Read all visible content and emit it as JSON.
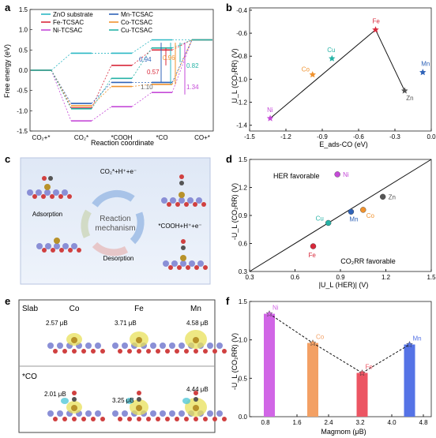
{
  "panels": {
    "a": {
      "label": "a",
      "ylabel": "Free energy (eV)",
      "xlabel": "Reaction coordinate",
      "xticks": [
        "CO₂+*",
        "CO₂*",
        "*COOH",
        "*CO",
        "CO+*"
      ],
      "yticks": [
        "1.5",
        "1.0",
        "0.5",
        "0.0",
        "-0.5",
        "-1.0",
        "-1.5"
      ],
      "legend": [
        "ZnO substrate",
        "Fe-TCSAC",
        "Ni-TCSAC",
        "Mn-TCSAC",
        "Co-TCSAC",
        "Cu-TCSAC"
      ],
      "annotations": [
        {
          "text": "0.94",
          "color": "#2f63b8"
        },
        {
          "text": "0.57",
          "color": "#d8283a"
        },
        {
          "text": "1.10",
          "color": "#666666"
        },
        {
          "text": "0.96",
          "color": "#f0922e"
        },
        {
          "text": "0.82",
          "color": "#27b3a6"
        },
        {
          "text": "1.34",
          "color": "#c54ad8"
        }
      ]
    },
    "b": {
      "label": "b",
      "ylabel": "U_L (CO₂RR) (V)",
      "xlabel": "E_ads-CO (eV)",
      "xticks": [
        "-1.5",
        "-1.2",
        "-0.9",
        "-0.6",
        "-0.3",
        "0.0"
      ],
      "yticks": [
        "-0.4",
        "-0.6",
        "-0.8",
        "-1.0",
        "-1.2",
        "-1.4"
      ]
    },
    "c": {
      "label": "c",
      "center_text_1": "Reaction",
      "center_text_2": "mechanism",
      "top_text": "CO₂*+H⁺+e⁻",
      "right_text": "*COOH+H⁺+e⁻",
      "left_text": "Adsorption",
      "bottom_text": "Desorption"
    },
    "d": {
      "label": "d",
      "ylabel": "-U_L (CO₂RR) (V)",
      "xlabel": "|U_L (HER)| (V)",
      "xticks": [
        "0.3",
        "0.6",
        "0.9",
        "1.2",
        "1.5"
      ],
      "yticks": [
        "1.5",
        "1.2",
        "0.9",
        "0.6",
        "0.3"
      ],
      "region_top": "HER favorable",
      "region_bottom": "CO₂RR favorable"
    },
    "e": {
      "label": "e",
      "row1": "Slab",
      "row2": "*CO",
      "cols": [
        "Co",
        "Fe",
        "Mn"
      ],
      "moments_slab": [
        "2.57 μB",
        "3.71 μB",
        "4.58 μB"
      ],
      "moments_co": [
        "2.01 μB",
        "3.25 μB",
        "4.44 μB"
      ]
    },
    "f": {
      "label": "f",
      "ylabel": "-U_L (CO₂RR) (V)",
      "xlabel": "Magmom (μB)",
      "xticks": [
        "0.8",
        "1.6",
        "2.4",
        "3.2",
        "4.0",
        "4.8"
      ],
      "yticks": [
        "1.5",
        "1.0",
        "0.5",
        "0.0"
      ]
    }
  },
  "chart_data": [
    {
      "panel": "a",
      "type": "line",
      "x": [
        "CO₂+*",
        "CO₂*",
        "*COOH",
        "*CO",
        "CO+*"
      ],
      "ylim": [
        -1.5,
        1.5
      ],
      "series": [
        {
          "name": "ZnO substrate",
          "color": "#2bb8c4",
          "values": [
            0.0,
            0.42,
            0.42,
            0.75,
            0.75
          ]
        },
        {
          "name": "Fe-TCSAC",
          "color": "#d8283a",
          "values": [
            0.0,
            -0.93,
            0.12,
            0.5,
            0.75
          ]
        },
        {
          "name": "Ni-TCSAC",
          "color": "#c54ad8",
          "values": [
            0.0,
            -1.25,
            -0.9,
            -0.55,
            0.75
          ]
        },
        {
          "name": "Mn-TCSAC",
          "color": "#2f63b8",
          "values": [
            0.0,
            -0.82,
            -0.3,
            -0.3,
            0.75
          ]
        },
        {
          "name": "Co-TCSAC",
          "color": "#f0922e",
          "values": [
            0.0,
            -0.88,
            -0.4,
            -0.35,
            0.75
          ]
        },
        {
          "name": "Cu-TCSAC",
          "color": "#27b3a6",
          "values": [
            0.0,
            -0.95,
            -0.2,
            0.55,
            0.75
          ]
        }
      ]
    },
    {
      "panel": "b",
      "type": "scatter",
      "xlim": [
        -1.5,
        0.0
      ],
      "ylim": [
        -1.45,
        -0.38
      ],
      "points": [
        {
          "label": "Ni",
          "x": -1.33,
          "y": -1.34,
          "color": "#c54ad8"
        },
        {
          "label": "Co",
          "x": -0.98,
          "y": -0.96,
          "color": "#f0922e"
        },
        {
          "label": "Cu",
          "x": -0.82,
          "y": -0.82,
          "color": "#27b3a6"
        },
        {
          "label": "Fe",
          "x": -0.46,
          "y": -0.57,
          "color": "#d8283a"
        },
        {
          "label": "Zn",
          "x": -0.22,
          "y": -1.1,
          "color": "#555555"
        },
        {
          "label": "Mn",
          "x": -0.07,
          "y": -0.94,
          "color": "#2f63b8"
        }
      ],
      "fit_lines": [
        {
          "x": [
            -1.33,
            -0.46
          ],
          "y": [
            -1.34,
            -0.57
          ]
        },
        {
          "x": [
            -0.46,
            -0.22
          ],
          "y": [
            -0.57,
            -1.1
          ]
        }
      ]
    },
    {
      "panel": "d",
      "type": "scatter",
      "xlim": [
        0.3,
        1.5
      ],
      "ylim": [
        0.3,
        1.5
      ],
      "points": [
        {
          "label": "Ni",
          "x": 0.88,
          "y": 1.34,
          "color": "#c54ad8"
        },
        {
          "label": "Zn",
          "x": 1.18,
          "y": 1.1,
          "color": "#555555"
        },
        {
          "label": "Co",
          "x": 1.05,
          "y": 0.96,
          "color": "#f0922e"
        },
        {
          "label": "Mn",
          "x": 0.97,
          "y": 0.94,
          "color": "#2f63b8"
        },
        {
          "label": "Cu",
          "x": 0.82,
          "y": 0.82,
          "color": "#27b3a6"
        },
        {
          "label": "Fe",
          "x": 0.72,
          "y": 0.57,
          "color": "#d8283a"
        }
      ]
    },
    {
      "panel": "f",
      "type": "bar",
      "xlim": [
        0.4,
        5.0
      ],
      "ylim": [
        0,
        1.5
      ],
      "bars": [
        {
          "label": "Ni",
          "x": 0.9,
          "y": 1.34,
          "color": "#d166e6"
        },
        {
          "label": "Co",
          "x": 2.0,
          "y": 0.96,
          "color": "#f3a064"
        },
        {
          "label": "Fe",
          "x": 3.25,
          "y": 0.57,
          "color": "#ec5563"
        },
        {
          "label": "Mn",
          "x": 4.45,
          "y": 0.94,
          "color": "#5573e6"
        }
      ]
    }
  ]
}
